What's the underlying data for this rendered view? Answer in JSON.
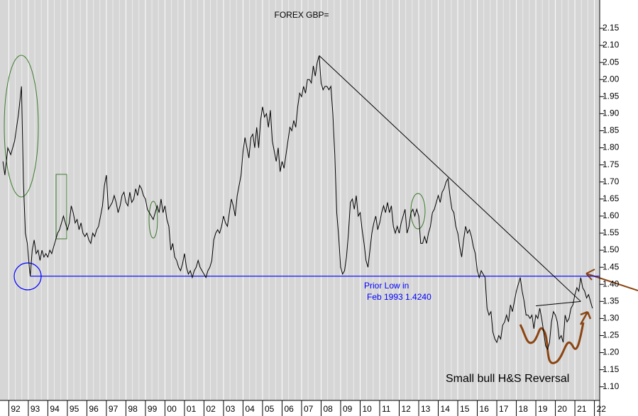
{
  "chart_data": {
    "type": "line",
    "title": "FOREX GBP=",
    "color": "#000000",
    "xlim": [
      1991.55,
      2022.27
    ],
    "ylim": [
      1.06,
      2.233
    ],
    "xticks": [
      {
        "value": 1992,
        "label": "92"
      },
      {
        "value": 1993,
        "label": "93"
      },
      {
        "value": 1994,
        "label": "94"
      },
      {
        "value": 1995,
        "label": "95"
      },
      {
        "value": 1996,
        "label": "96"
      },
      {
        "value": 1997,
        "label": "97"
      },
      {
        "value": 1998,
        "label": "98"
      },
      {
        "value": 1999,
        "label": "99"
      },
      {
        "value": 2000,
        "label": "00"
      },
      {
        "value": 2001,
        "label": "01"
      },
      {
        "value": 2002,
        "label": "02"
      },
      {
        "value": 2003,
        "label": "03"
      },
      {
        "value": 2004,
        "label": "04"
      },
      {
        "value": 2005,
        "label": "05"
      },
      {
        "value": 2006,
        "label": "06"
      },
      {
        "value": 2007,
        "label": "07"
      },
      {
        "value": 2008,
        "label": "08"
      },
      {
        "value": 2009,
        "label": "09"
      },
      {
        "value": 2010,
        "label": "10"
      },
      {
        "value": 2011,
        "label": "11"
      },
      {
        "value": 2012,
        "label": "12"
      },
      {
        "value": 2013,
        "label": "13"
      },
      {
        "value": 2014,
        "label": "14"
      },
      {
        "value": 2015,
        "label": "15"
      },
      {
        "value": 2016,
        "label": "16"
      },
      {
        "value": 2017,
        "label": "17"
      },
      {
        "value": 2018,
        "label": "18"
      },
      {
        "value": 2019,
        "label": "19"
      },
      {
        "value": 2020,
        "label": "20"
      },
      {
        "value": 2021,
        "label": "21"
      },
      {
        "value": 2022,
        "label": "22"
      }
    ],
    "yticks": [
      2.15,
      {
        "value": 2.1,
        "label": "2.10"
      },
      2.05,
      {
        "value": 2.0,
        "label": "2.00"
      },
      1.95,
      {
        "value": 1.9,
        "label": "1.90"
      },
      1.85,
      {
        "value": 1.8,
        "label": "1.80"
      },
      1.75,
      {
        "value": 1.7,
        "label": "1.70"
      },
      1.65,
      {
        "value": 1.6,
        "label": "1.60"
      },
      1.55,
      {
        "value": 1.5,
        "label": "1.50"
      },
      1.45,
      {
        "value": 1.4,
        "label": "1.40"
      },
      1.35,
      {
        "value": 1.3,
        "label": "1.30"
      },
      1.25,
      {
        "value": 1.2,
        "label": "1.20"
      },
      1.15,
      {
        "value": 1.1,
        "label": "1.10"
      }
    ],
    "x": [
      1991.7,
      1991.8,
      1991.95,
      1992.1,
      1992.3,
      1992.5,
      1992.65,
      1992.75,
      1992.85,
      1992.95,
      1993.05,
      1993.1,
      1993.2,
      1993.3,
      1993.4,
      1993.5,
      1993.6,
      1993.7,
      1993.8,
      1993.9,
      1994.0,
      1994.1,
      1994.2,
      1994.3,
      1994.4,
      1994.5,
      1994.6,
      1994.7,
      1994.8,
      1994.9,
      1995.0,
      1995.1,
      1995.2,
      1995.3,
      1995.4,
      1995.5,
      1995.6,
      1995.7,
      1995.8,
      1995.9,
      1996.0,
      1996.1,
      1996.2,
      1996.3,
      1996.4,
      1996.5,
      1996.6,
      1996.7,
      1996.8,
      1996.9,
      1997.0,
      1997.1,
      1997.2,
      1997.3,
      1997.4,
      1997.5,
      1997.6,
      1997.7,
      1997.8,
      1997.9,
      1998.0,
      1998.1,
      1998.2,
      1998.3,
      1998.4,
      1998.5,
      1998.6,
      1998.7,
      1998.8,
      1998.9,
      1999.0,
      1999.1,
      1999.2,
      1999.3,
      1999.4,
      1999.5,
      1999.6,
      1999.7,
      1999.8,
      1999.9,
      2000.0,
      2000.1,
      2000.2,
      2000.3,
      2000.4,
      2000.5,
      2000.6,
      2000.7,
      2000.8,
      2000.9,
      2001.0,
      2001.1,
      2001.2,
      2001.3,
      2001.4,
      2001.5,
      2001.6,
      2001.7,
      2001.8,
      2001.9,
      2002.0,
      2002.1,
      2002.2,
      2002.3,
      2002.4,
      2002.5,
      2002.6,
      2002.7,
      2002.8,
      2002.9,
      2003.0,
      2003.1,
      2003.2,
      2003.3,
      2003.4,
      2003.5,
      2003.6,
      2003.7,
      2003.8,
      2003.9,
      2004.0,
      2004.1,
      2004.2,
      2004.3,
      2004.4,
      2004.5,
      2004.6,
      2004.7,
      2004.8,
      2004.9,
      2005.0,
      2005.1,
      2005.2,
      2005.3,
      2005.4,
      2005.5,
      2005.6,
      2005.7,
      2005.8,
      2005.9,
      2006.0,
      2006.1,
      2006.2,
      2006.3,
      2006.4,
      2006.5,
      2006.6,
      2006.7,
      2006.8,
      2006.9,
      2007.0,
      2007.1,
      2007.2,
      2007.3,
      2007.4,
      2007.5,
      2007.6,
      2007.7,
      2007.8,
      2007.9,
      2008.0,
      2008.1,
      2008.2,
      2008.3,
      2008.4,
      2008.5,
      2008.6,
      2008.7,
      2008.8,
      2008.9,
      2009.0,
      2009.1,
      2009.2,
      2009.3,
      2009.4,
      2009.5,
      2009.6,
      2009.7,
      2009.8,
      2009.9,
      2010.0,
      2010.1,
      2010.2,
      2010.3,
      2010.4,
      2010.5,
      2010.6,
      2010.7,
      2010.8,
      2010.9,
      2011.0,
      2011.1,
      2011.2,
      2011.3,
      2011.4,
      2011.5,
      2011.6,
      2011.7,
      2011.8,
      2011.9,
      2012.0,
      2012.1,
      2012.2,
      2012.3,
      2012.4,
      2012.5,
      2012.6,
      2012.7,
      2012.8,
      2012.9,
      2013.0,
      2013.1,
      2013.2,
      2013.3,
      2013.4,
      2013.5,
      2013.6,
      2013.7,
      2013.8,
      2013.9,
      2014.0,
      2014.1,
      2014.2,
      2014.3,
      2014.4,
      2014.5,
      2014.6,
      2014.7,
      2014.8,
      2014.9,
      2015.0,
      2015.1,
      2015.2,
      2015.3,
      2015.4,
      2015.5,
      2015.6,
      2015.7,
      2015.8,
      2015.9,
      2016.0,
      2016.1,
      2016.2,
      2016.3,
      2016.4,
      2016.5,
      2016.6,
      2016.7,
      2016.8,
      2016.9,
      2017.0,
      2017.1,
      2017.2,
      2017.3,
      2017.4,
      2017.5,
      2017.6,
      2017.7,
      2017.8,
      2017.9,
      2018.0,
      2018.1,
      2018.2,
      2018.3,
      2018.4,
      2018.5,
      2018.6,
      2018.7,
      2018.8,
      2018.9,
      2019.0,
      2019.1,
      2019.2,
      2019.3,
      2019.4,
      2019.5,
      2019.6,
      2019.7,
      2019.8,
      2019.9,
      2020.0,
      2020.1,
      2020.2,
      2020.3,
      2020.4,
      2020.5,
      2020.6,
      2020.7,
      2020.8,
      2020.9,
      2021.0,
      2021.1,
      2021.2,
      2021.3,
      2021.4,
      2021.5,
      2021.6,
      2021.7,
      2021.8,
      2021.9
    ],
    "values": [
      1.76,
      1.72,
      1.8,
      1.78,
      1.82,
      1.9,
      1.98,
      1.7,
      1.55,
      1.52,
      1.45,
      1.424,
      1.5,
      1.53,
      1.49,
      1.5,
      1.47,
      1.5,
      1.48,
      1.49,
      1.48,
      1.5,
      1.49,
      1.51,
      1.53,
      1.55,
      1.56,
      1.58,
      1.6,
      1.58,
      1.56,
      1.58,
      1.63,
      1.61,
      1.58,
      1.59,
      1.56,
      1.58,
      1.55,
      1.54,
      1.55,
      1.53,
      1.52,
      1.55,
      1.54,
      1.56,
      1.57,
      1.6,
      1.63,
      1.69,
      1.72,
      1.62,
      1.63,
      1.64,
      1.66,
      1.64,
      1.61,
      1.63,
      1.66,
      1.67,
      1.64,
      1.63,
      1.67,
      1.64,
      1.65,
      1.68,
      1.66,
      1.69,
      1.68,
      1.66,
      1.65,
      1.62,
      1.61,
      1.6,
      1.59,
      1.61,
      1.63,
      1.61,
      1.65,
      1.61,
      1.63,
      1.59,
      1.57,
      1.5,
      1.52,
      1.48,
      1.47,
      1.45,
      1.44,
      1.46,
      1.49,
      1.45,
      1.43,
      1.44,
      1.42,
      1.44,
      1.45,
      1.47,
      1.45,
      1.44,
      1.43,
      1.42,
      1.44,
      1.45,
      1.47,
      1.53,
      1.55,
      1.56,
      1.55,
      1.57,
      1.6,
      1.58,
      1.57,
      1.61,
      1.65,
      1.63,
      1.6,
      1.66,
      1.69,
      1.72,
      1.79,
      1.83,
      1.8,
      1.77,
      1.83,
      1.84,
      1.8,
      1.86,
      1.8,
      1.88,
      1.92,
      1.89,
      1.9,
      1.86,
      1.91,
      1.82,
      1.79,
      1.76,
      1.8,
      1.73,
      1.76,
      1.74,
      1.78,
      1.82,
      1.86,
      1.85,
      1.88,
      1.86,
      1.92,
      1.96,
      1.95,
      1.98,
      1.96,
      2.0,
      2.0,
      1.99,
      2.04,
      2.01,
      2.05,
      2.07,
      1.99,
      1.97,
      1.98,
      1.98,
      1.97,
      1.98,
      1.9,
      1.78,
      1.61,
      1.54,
      1.45,
      1.43,
      1.44,
      1.48,
      1.55,
      1.64,
      1.65,
      1.62,
      1.66,
      1.6,
      1.61,
      1.56,
      1.52,
      1.47,
      1.45,
      1.5,
      1.55,
      1.58,
      1.6,
      1.56,
      1.58,
      1.61,
      1.63,
      1.61,
      1.64,
      1.61,
      1.63,
      1.57,
      1.55,
      1.57,
      1.55,
      1.58,
      1.6,
      1.62,
      1.55,
      1.57,
      1.61,
      1.62,
      1.6,
      1.62,
      1.6,
      1.52,
      1.52,
      1.54,
      1.52,
      1.55,
      1.57,
      1.61,
      1.62,
      1.64,
      1.66,
      1.64,
      1.67,
      1.68,
      1.7,
      1.71,
      1.66,
      1.62,
      1.61,
      1.57,
      1.55,
      1.51,
      1.48,
      1.53,
      1.57,
      1.55,
      1.56,
      1.54,
      1.51,
      1.49,
      1.44,
      1.42,
      1.44,
      1.43,
      1.42,
      1.33,
      1.31,
      1.32,
      1.26,
      1.24,
      1.23,
      1.25,
      1.24,
      1.28,
      1.29,
      1.31,
      1.29,
      1.34,
      1.32,
      1.35,
      1.38,
      1.4,
      1.42,
      1.38,
      1.35,
      1.31,
      1.31,
      1.3,
      1.31,
      1.27,
      1.31,
      1.3,
      1.33,
      1.3,
      1.26,
      1.22,
      1.21,
      1.23,
      1.29,
      1.32,
      1.31,
      1.29,
      1.24,
      1.25,
      1.23,
      1.31,
      1.29,
      1.3,
      1.33,
      1.34,
      1.37,
      1.39,
      1.38,
      1.42,
      1.39,
      1.38,
      1.36,
      1.37,
      1.35,
      1.33
    ],
    "hlines": [
      {
        "value": 1.424,
        "color": "#0000ff",
        "from": 1993.1
      }
    ],
    "trendlines": [
      {
        "x": [
          2007.9,
          2021.3
        ],
        "values": [
          2.07,
          1.35
        ]
      },
      {
        "x": [
          2019.0,
          2021.3
        ],
        "values": [
          1.337,
          1.35
        ]
      }
    ],
    "annotations": [
      {
        "text": "Prior Low in"
      },
      {
        "text": "Feb 1993 1.4240"
      },
      {
        "text": "Small bull H&S Reversal"
      }
    ]
  }
}
